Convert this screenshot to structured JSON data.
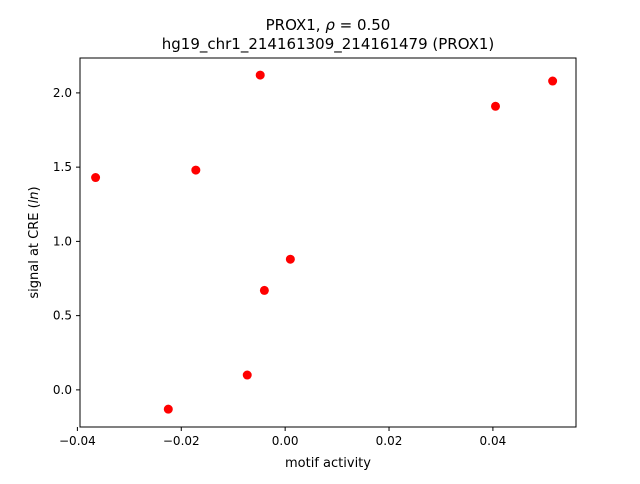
{
  "chart_data": {
    "type": "scatter",
    "title_line1_prefix": "PROX1, ",
    "title_line1_rho": "ρ",
    "title_line1_suffix": " = 0.50",
    "title_line2": "hg19_chr1_214161309_214161479 (PROX1)",
    "xlabel": "motif activity",
    "ylabel_prefix": "signal at CRE (",
    "ylabel_italic": "ln",
    "ylabel_suffix": ")",
    "xlim": [
      -0.0395,
      0.056
    ],
    "ylim": [
      -0.25,
      2.235
    ],
    "x_ticks": [
      -0.04,
      -0.02,
      0.0,
      0.02,
      0.04
    ],
    "x_tick_labels": [
      "−0.04",
      "−0.02",
      "0.00",
      "0.02",
      "0.04"
    ],
    "y_ticks": [
      0.0,
      0.5,
      1.0,
      1.5,
      2.0
    ],
    "y_tick_labels": [
      "0.0",
      "0.5",
      "1.0",
      "1.5",
      "2.0"
    ],
    "grid": false,
    "point_color": "#ff0000",
    "points": [
      {
        "x": -0.0365,
        "y": 1.43
      },
      {
        "x": -0.0225,
        "y": -0.13
      },
      {
        "x": -0.0172,
        "y": 1.48
      },
      {
        "x": -0.0073,
        "y": 0.1
      },
      {
        "x": -0.0048,
        "y": 2.12
      },
      {
        "x": -0.004,
        "y": 0.67
      },
      {
        "x": 0.001,
        "y": 0.88
      },
      {
        "x": 0.0405,
        "y": 1.91
      },
      {
        "x": 0.0515,
        "y": 2.08
      }
    ]
  }
}
